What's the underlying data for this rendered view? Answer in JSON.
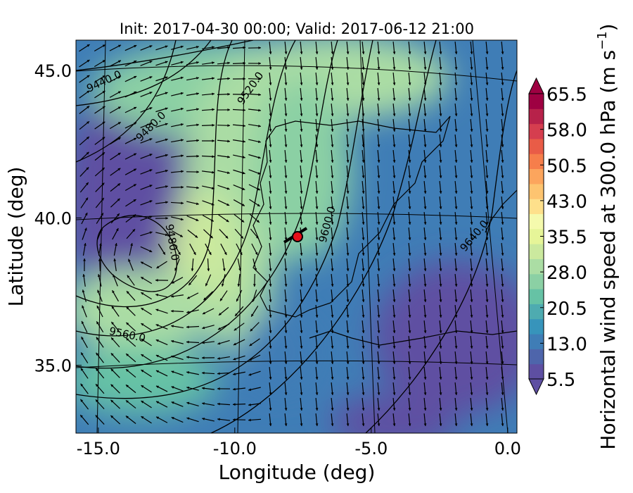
{
  "map": {
    "title": "Init: 2017-04-30 00:00; Valid: 2017-06-12 21:00",
    "xlabel": "Longitude (deg)",
    "ylabel": "Latitude (deg)",
    "xlim": [
      -15.82,
      0.34
    ],
    "ylim": [
      32.7,
      46.03
    ],
    "xticks": [
      {
        "value": -15,
        "label": "-15.0"
      },
      {
        "value": -10,
        "label": "-10.0"
      },
      {
        "value": -5,
        "label": "-5.0"
      },
      {
        "value": 0,
        "label": "0.0"
      }
    ],
    "yticks": [
      {
        "value": 45,
        "label": "45.0"
      },
      {
        "value": 40,
        "label": "40.0"
      },
      {
        "value": 35,
        "label": "35.0"
      }
    ],
    "contour_labels": [
      "9440.0",
      "9520.0",
      "9480.0",
      "9480.0",
      "9560.0",
      "9600.0",
      "9640.0"
    ],
    "colorbar": {
      "label": "Horizontal wind speed at 300.0 hPa (m s",
      "label_sup": "−1",
      "label_end": ")",
      "clim": [
        5.5,
        65.5
      ],
      "ticks": [
        5.5,
        {
          "value": 13,
          "label": "13.0"
        },
        20.5,
        {
          "value": 28,
          "label": "28.0"
        },
        35.5,
        {
          "value": 43,
          "label": "43.0"
        },
        50.5,
        {
          "value": 58,
          "label": "58.0"
        },
        65.5
      ],
      "colors": [
        "#5e4fa2",
        "#4e65ab",
        "#3f7db6",
        "#3794bb",
        "#4eabb0",
        "#66c2a5",
        "#8bd0a4",
        "#abdda4",
        "#cbe99e",
        "#e6f598",
        "#f5faad",
        "#fee08b",
        "#fdc470",
        "#fca55d",
        "#f67e4b",
        "#e95c47",
        "#d53e4f",
        "#b7224a",
        "#9e0142"
      ]
    }
  }
}
